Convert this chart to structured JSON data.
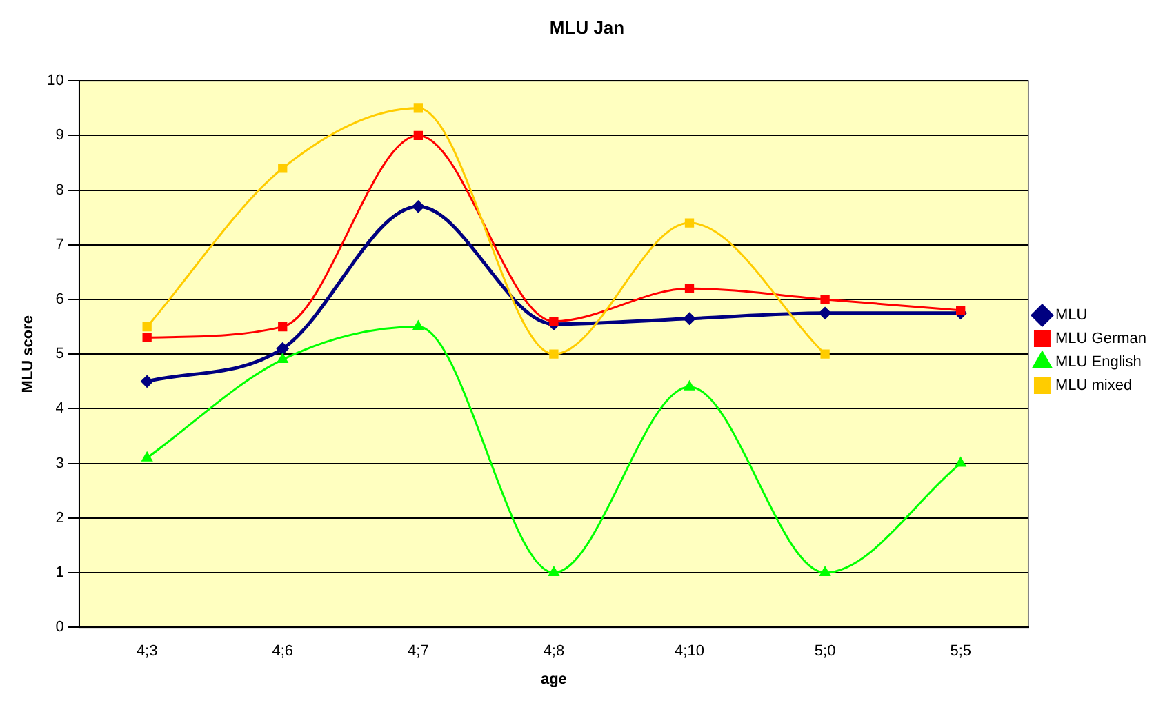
{
  "chart_data": {
    "type": "line",
    "title": "MLU Jan",
    "xlabel": "age",
    "ylabel": "MLU score",
    "categories": [
      "4;3",
      "4;6",
      "4;7",
      "4;8",
      "4;10",
      "5;0",
      "5;5"
    ],
    "ylim": [
      0,
      10
    ],
    "yticks": [
      0,
      1,
      2,
      3,
      4,
      5,
      6,
      7,
      8,
      9,
      10
    ],
    "grid": "y",
    "legend": "right",
    "series": [
      {
        "name": "MLU",
        "color": "#000080",
        "marker": "diamond",
        "values": [
          4.5,
          5.1,
          7.7,
          5.55,
          5.65,
          5.75,
          5.75
        ]
      },
      {
        "name": "MLU German",
        "color": "#ff0000",
        "marker": "square",
        "values": [
          5.3,
          5.5,
          9.0,
          5.6,
          6.2,
          6.0,
          5.8
        ]
      },
      {
        "name": "MLU English",
        "color": "#00ff00",
        "marker": "triangle",
        "values": [
          3.1,
          4.9,
          5.5,
          1.0,
          4.4,
          1.0,
          3.0
        ]
      },
      {
        "name": "MLU mixed",
        "color": "#ffcc00",
        "marker": "square",
        "values": [
          5.5,
          8.4,
          9.5,
          5.0,
          7.4,
          5.0,
          null
        ]
      }
    ]
  }
}
